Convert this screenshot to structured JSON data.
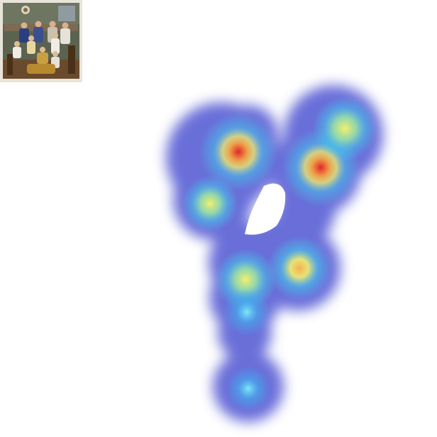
{
  "thumbnail": {
    "icon": "family-photo-thumbnail",
    "colors": {
      "frame": "#e9e4da",
      "wall": "#5b6350",
      "floor": "#6a4a2c"
    }
  },
  "heatmap": {
    "icon": "attention-heatmap",
    "colormap": [
      "#4a4fd0",
      "#3fd6f0",
      "#f5f06a",
      "#f5a040",
      "#e0262a"
    ],
    "overlay_opacity": 0.82
  }
}
